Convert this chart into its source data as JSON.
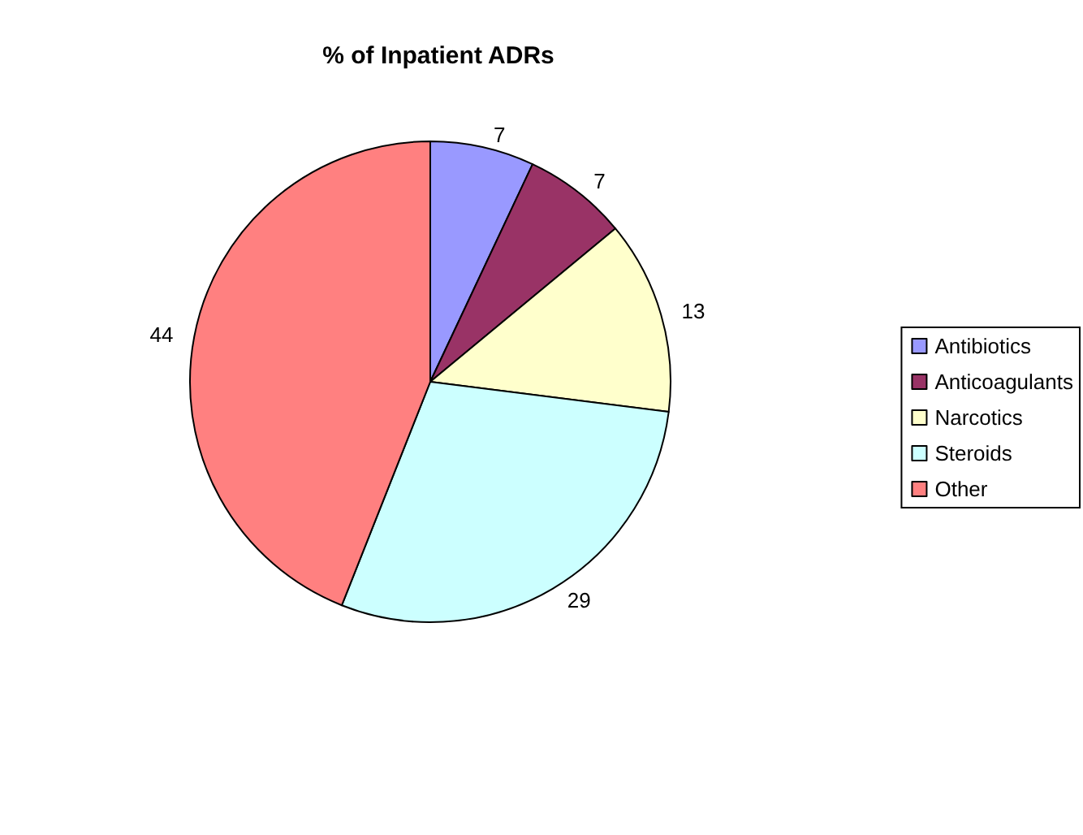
{
  "chart_data": {
    "type": "pie",
    "title": "% of Inpatient ADRs",
    "categories": [
      "Antibiotics",
      "Anticoagulants",
      "Narcotics",
      "Steroids",
      "Other"
    ],
    "values": [
      7,
      7,
      13,
      29,
      44
    ],
    "colors": [
      "#9999ff",
      "#993366",
      "#ffffcc",
      "#ccffff",
      "#ff8080"
    ],
    "data_labels": true,
    "legend": "right"
  }
}
